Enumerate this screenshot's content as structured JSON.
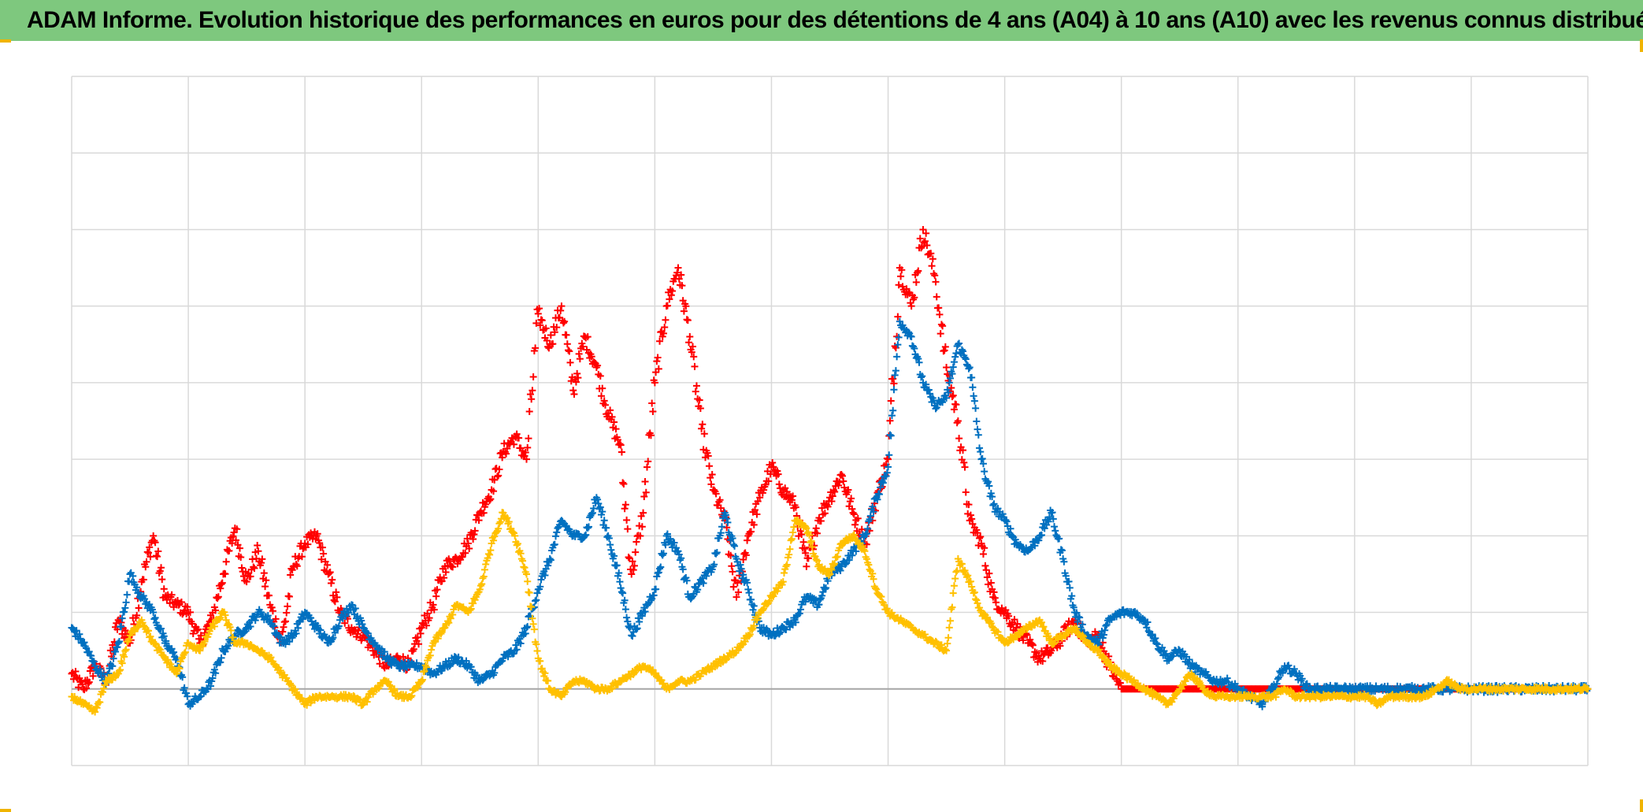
{
  "header": {
    "title": "ADAM Informe. Evolution historique des performances en euros pour des détentions de 4 ans (A04) à 10 ans (A10) avec les revenus connus distribués"
  },
  "colors": {
    "title_bg": "#7ec87e",
    "corner_marks": "#f0b400",
    "grid": "#d9d9d9",
    "zero_line": "#a6a6a6"
  },
  "chart_data": {
    "type": "scatter",
    "marker": "plus",
    "title": "",
    "xlabel": "",
    "ylabel": "",
    "xlim": [
      0,
      13
    ],
    "ylim": [
      -1,
      8
    ],
    "x_gridlines": 13,
    "y_gridlines": 9,
    "grid": true,
    "legend": "none",
    "series": [
      {
        "color": "#ff0000",
        "x": [
          0.0,
          0.1,
          0.2,
          0.3,
          0.4,
          0.5,
          0.6,
          0.7,
          0.8,
          0.9,
          1.0,
          1.1,
          1.2,
          1.3,
          1.4,
          1.5,
          1.6,
          1.7,
          1.8,
          1.9,
          2.0,
          2.1,
          2.2,
          2.3,
          2.4,
          2.5,
          2.6,
          2.7,
          2.8,
          2.9,
          3.0,
          3.1,
          3.2,
          3.3,
          3.4,
          3.5,
          3.6,
          3.7,
          3.8,
          3.9,
          4.0,
          4.1,
          4.2,
          4.3,
          4.4,
          4.5,
          4.6,
          4.7,
          4.8,
          4.9,
          5.0,
          5.1,
          5.2,
          5.3,
          5.4,
          5.5,
          5.6,
          5.7,
          5.8,
          5.9,
          6.0,
          6.1,
          6.2,
          6.3,
          6.4,
          6.5,
          6.6,
          6.7,
          6.8,
          6.9,
          7.0,
          7.1,
          7.2,
          7.3,
          7.4,
          7.5,
          7.6,
          7.7,
          7.8,
          7.9,
          8.0,
          8.1,
          8.2,
          8.3,
          8.4,
          8.5,
          8.6,
          8.7,
          8.8,
          8.9,
          9.0,
          9.1,
          9.2,
          9.3,
          9.4,
          9.5,
          9.6,
          9.7,
          9.8,
          9.9,
          10.0,
          10.5,
          11.0,
          11.5,
          12.0,
          12.5,
          13.0
        ],
        "y": [
          0.2,
          0.0,
          0.3,
          0.1,
          0.9,
          0.6,
          1.4,
          2.0,
          1.2,
          1.1,
          1.0,
          0.6,
          0.9,
          1.5,
          2.1,
          1.4,
          1.8,
          1.1,
          0.6,
          1.6,
          1.9,
          2.0,
          1.5,
          1.0,
          0.8,
          0.7,
          0.5,
          0.3,
          0.4,
          0.3,
          0.8,
          1.1,
          1.6,
          1.7,
          1.9,
          2.3,
          2.6,
          3.1,
          3.3,
          3.0,
          4.9,
          4.5,
          5.0,
          3.9,
          4.6,
          4.2,
          3.6,
          3.2,
          1.5,
          2.3,
          4.0,
          5.0,
          5.5,
          4.6,
          3.4,
          2.6,
          2.2,
          1.2,
          2.0,
          2.5,
          2.9,
          2.6,
          2.4,
          1.6,
          2.2,
          2.5,
          2.8,
          2.3,
          1.9,
          2.5,
          3.0,
          5.5,
          5.0,
          6.0,
          5.4,
          4.2,
          3.5,
          2.2,
          1.9,
          1.2,
          1.0,
          0.8,
          0.6,
          0.4,
          0.5,
          0.7,
          0.9,
          0.6,
          0.7,
          0.3,
          0.0,
          0.0,
          0.0,
          0.0,
          0.0,
          0.0,
          0.0,
          0.0,
          0.0,
          0.0,
          0.0,
          0.0,
          0.0,
          0.0,
          0.0,
          0.0,
          0.0
        ]
      },
      {
        "color": "#0070c0",
        "x": [
          0.0,
          0.1,
          0.2,
          0.3,
          0.4,
          0.5,
          0.6,
          0.7,
          0.8,
          0.9,
          1.0,
          1.1,
          1.2,
          1.3,
          1.4,
          1.5,
          1.6,
          1.7,
          1.8,
          1.9,
          2.0,
          2.1,
          2.2,
          2.3,
          2.4,
          2.5,
          2.6,
          2.7,
          2.8,
          2.9,
          3.0,
          3.1,
          3.2,
          3.3,
          3.4,
          3.5,
          3.6,
          3.7,
          3.8,
          3.9,
          4.0,
          4.1,
          4.2,
          4.3,
          4.4,
          4.5,
          4.6,
          4.7,
          4.8,
          4.9,
          5.0,
          5.1,
          5.2,
          5.3,
          5.4,
          5.5,
          5.6,
          5.7,
          5.8,
          5.9,
          6.0,
          6.1,
          6.2,
          6.3,
          6.4,
          6.5,
          6.6,
          6.7,
          6.8,
          6.9,
          7.0,
          7.1,
          7.2,
          7.3,
          7.4,
          7.5,
          7.6,
          7.7,
          7.8,
          7.9,
          8.0,
          8.1,
          8.2,
          8.3,
          8.4,
          8.5,
          8.6,
          8.7,
          8.8,
          8.9,
          9.0,
          9.1,
          9.2,
          9.3,
          9.4,
          9.5,
          9.6,
          9.7,
          9.8,
          9.9,
          10.0,
          10.1,
          10.2,
          10.3,
          10.4,
          10.5,
          10.6,
          10.7,
          10.8,
          10.9,
          11.0,
          11.2,
          11.4,
          11.6,
          11.8,
          12.0,
          12.2,
          12.4,
          12.6,
          12.8,
          13.0
        ],
        "y": [
          0.8,
          0.6,
          0.3,
          0.1,
          0.6,
          1.5,
          1.2,
          1.0,
          0.6,
          0.4,
          -0.2,
          -0.1,
          0.1,
          0.5,
          0.7,
          0.8,
          1.0,
          0.9,
          0.6,
          0.7,
          1.0,
          0.8,
          0.6,
          0.9,
          1.1,
          0.8,
          0.6,
          0.4,
          0.3,
          0.3,
          0.3,
          0.2,
          0.3,
          0.4,
          0.3,
          0.1,
          0.2,
          0.4,
          0.5,
          0.8,
          1.3,
          1.7,
          2.2,
          2.0,
          2.0,
          2.5,
          2.0,
          1.4,
          0.7,
          1.0,
          1.3,
          2.0,
          1.8,
          1.2,
          1.4,
          1.6,
          2.3,
          1.7,
          1.3,
          0.8,
          0.7,
          0.8,
          0.9,
          1.2,
          1.1,
          1.5,
          1.6,
          1.8,
          2.0,
          2.5,
          2.9,
          4.8,
          4.6,
          4.0,
          3.7,
          3.8,
          4.5,
          4.2,
          3.0,
          2.4,
          2.2,
          1.9,
          1.8,
          2.0,
          2.3,
          1.7,
          1.0,
          0.7,
          0.6,
          0.9,
          1.0,
          1.0,
          0.9,
          0.6,
          0.4,
          0.5,
          0.3,
          0.2,
          0.1,
          0.1,
          0.0,
          -0.1,
          -0.2,
          0.0,
          0.3,
          0.2,
          0.0,
          0.0,
          0.0,
          0.0,
          0.0,
          0.0,
          0.0,
          0.0,
          0.0,
          0.0,
          0.0,
          0.0,
          0.0,
          0.0,
          0.0
        ]
      },
      {
        "color": "#ffc000",
        "x": [
          0.0,
          0.1,
          0.2,
          0.3,
          0.4,
          0.5,
          0.6,
          0.7,
          0.8,
          0.9,
          1.0,
          1.1,
          1.2,
          1.3,
          1.4,
          1.5,
          1.6,
          1.7,
          1.8,
          1.9,
          2.0,
          2.1,
          2.2,
          2.3,
          2.4,
          2.5,
          2.6,
          2.7,
          2.8,
          2.9,
          3.0,
          3.1,
          3.2,
          3.3,
          3.4,
          3.5,
          3.6,
          3.7,
          3.8,
          3.9,
          4.0,
          4.1,
          4.2,
          4.3,
          4.4,
          4.5,
          4.6,
          4.7,
          4.8,
          4.9,
          5.0,
          5.1,
          5.2,
          5.3,
          5.4,
          5.5,
          5.6,
          5.7,
          5.8,
          5.9,
          6.0,
          6.1,
          6.2,
          6.3,
          6.4,
          6.5,
          6.6,
          6.7,
          6.8,
          6.9,
          7.0,
          7.1,
          7.2,
          7.3,
          7.4,
          7.5,
          7.6,
          7.7,
          7.8,
          7.9,
          8.0,
          8.1,
          8.2,
          8.3,
          8.4,
          8.5,
          8.6,
          8.7,
          8.8,
          8.9,
          9.0,
          9.1,
          9.2,
          9.3,
          9.4,
          9.5,
          9.6,
          9.7,
          9.8,
          9.9,
          10.0,
          10.1,
          10.2,
          10.3,
          10.4,
          10.5,
          10.6,
          10.7,
          10.8,
          10.9,
          11.0,
          11.1,
          11.2,
          11.3,
          11.4,
          11.5,
          11.6,
          11.7,
          11.8,
          11.9,
          12.0,
          12.1,
          12.2,
          12.3,
          12.4,
          12.5,
          12.6,
          12.7,
          12.8,
          12.9,
          13.0
        ],
        "y": [
          -0.1,
          -0.2,
          -0.3,
          0.1,
          0.2,
          0.7,
          0.9,
          0.6,
          0.4,
          0.2,
          0.6,
          0.5,
          0.8,
          1.0,
          0.6,
          0.6,
          0.5,
          0.4,
          0.2,
          0.0,
          -0.2,
          -0.1,
          -0.1,
          -0.1,
          -0.1,
          -0.2,
          0.0,
          0.1,
          -0.1,
          -0.1,
          0.1,
          0.6,
          0.8,
          1.1,
          1.0,
          1.3,
          1.9,
          2.3,
          2.0,
          1.5,
          0.4,
          0.0,
          -0.1,
          0.1,
          0.1,
          0.0,
          0.0,
          0.1,
          0.2,
          0.3,
          0.2,
          0.0,
          0.1,
          0.1,
          0.2,
          0.3,
          0.4,
          0.5,
          0.7,
          1.0,
          1.2,
          1.4,
          2.2,
          2.1,
          1.6,
          1.5,
          1.9,
          2.0,
          1.8,
          1.3,
          1.0,
          0.9,
          0.8,
          0.7,
          0.6,
          0.5,
          1.7,
          1.4,
          1.0,
          0.8,
          0.6,
          0.7,
          0.8,
          0.9,
          0.6,
          0.7,
          0.8,
          0.6,
          0.5,
          0.3,
          0.2,
          0.1,
          0.0,
          -0.1,
          -0.2,
          0.0,
          0.2,
          0.0,
          -0.1,
          -0.1,
          -0.1,
          -0.1,
          -0.1,
          -0.1,
          0.0,
          -0.1,
          -0.1,
          -0.1,
          -0.1,
          -0.1,
          -0.1,
          -0.1,
          -0.2,
          -0.1,
          -0.1,
          -0.1,
          -0.1,
          0.0,
          0.1,
          0.0,
          0.0,
          0.0,
          0.0,
          0.0,
          0.0,
          0.0,
          0.0,
          0.0,
          0.0,
          0.0,
          0.0
        ]
      }
    ]
  }
}
